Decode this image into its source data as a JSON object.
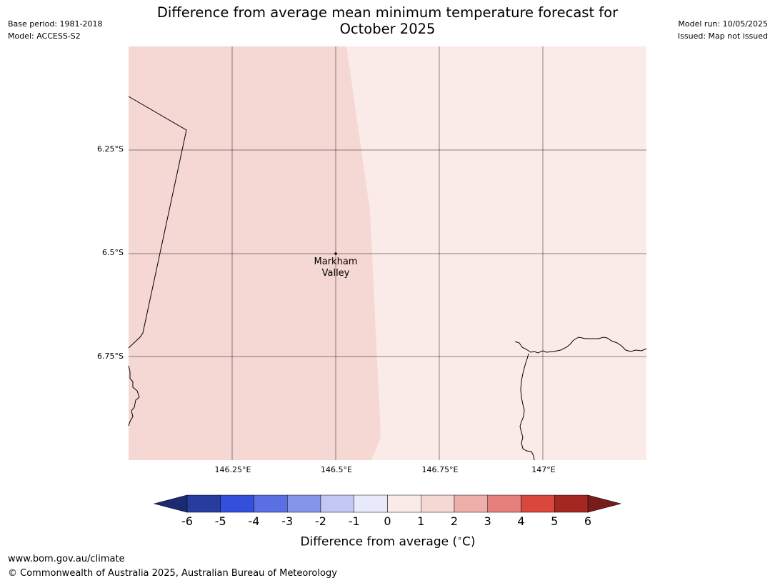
{
  "header": {
    "title_line1": "Difference from average mean minimum temperature forecast for",
    "title_line2": "October 2025",
    "base_period": "Base period: 1981-2018",
    "model": "Model: ACCESS-S2",
    "model_run": "Model run: 10/05/2025",
    "issued": "Issued: Map not issued"
  },
  "map": {
    "lat_labels": [
      "6.25°S",
      "6.5°S",
      "6.75°S"
    ],
    "lon_labels": [
      "146.25°E",
      "146.5°E",
      "146.75°E",
      "147°E"
    ],
    "place": {
      "name_line1": "Markham",
      "name_line2": "Valley",
      "lat": -6.5,
      "lon": 146.5
    },
    "fill_categories": [
      {
        "range": "1 to 2",
        "color": "#f5d7d3"
      },
      {
        "range": "0 to 1",
        "color": "#fbebe8"
      }
    ]
  },
  "colorbar": {
    "ticks": [
      "-6",
      "-5",
      "-4",
      "-3",
      "-2",
      "-1",
      "0",
      "1",
      "2",
      "3",
      "4",
      "5",
      "6"
    ],
    "colors": [
      "#283c9f",
      "#3250dc",
      "#5a6fe3",
      "#8596ea",
      "#c2c7f3",
      "#e8eafc",
      "#fbebe8",
      "#f5d7d3",
      "#eeafab",
      "#e5807c",
      "#da473c",
      "#a52721"
    ],
    "under_color": "#1b2a73",
    "over_color": "#781d1a",
    "label": "Difference from average (",
    "unit_symbol": "∘",
    "unit": "C)"
  },
  "footer": {
    "url": "www.bom.gov.au/climate",
    "copyright": "© Commonwealth of Australia 2025, Australian Bureau of Meteorology"
  }
}
